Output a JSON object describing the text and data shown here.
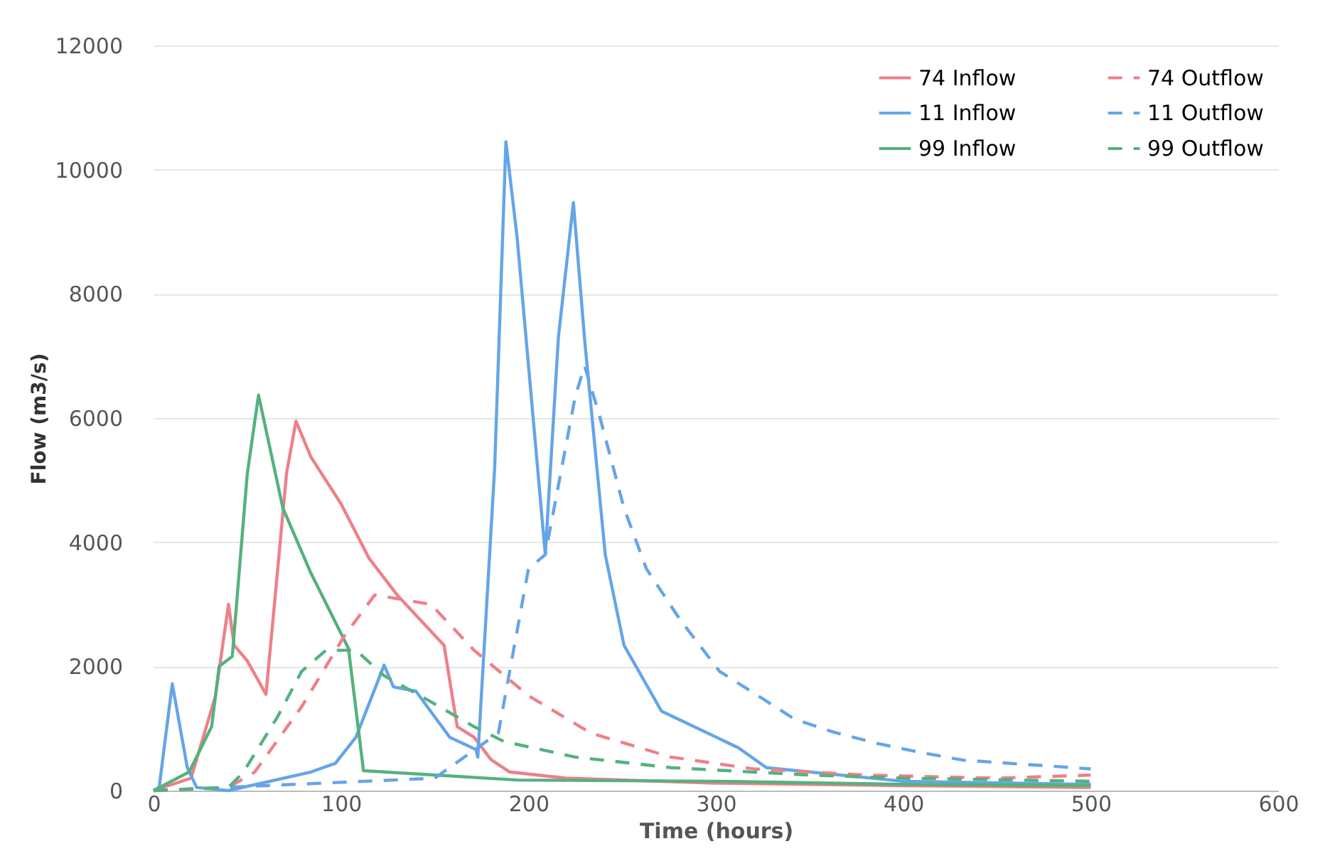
{
  "chart_data": {
    "type": "line",
    "xlabel": "Time (hours)",
    "ylabel": "Flow (m3/s)",
    "xlim": [
      0,
      600
    ],
    "xticks": [
      0,
      100,
      200,
      300,
      400,
      500,
      600
    ],
    "ylim": [
      0,
      12000
    ],
    "yticks": [
      0,
      2000,
      4000,
      6000,
      8000,
      10000,
      12000
    ],
    "grid": "y",
    "legend": "top right",
    "marker": "none",
    "series": [
      {
        "name": "74 Inflow",
        "color": "#ef7f88",
        "line_style": "solid",
        "x": [
          0,
          20,
          33,
          40,
          43,
          50,
          60,
          66,
          71,
          76,
          84,
          100,
          115,
          130,
          155,
          162,
          171,
          180,
          190,
          220,
          300,
          400,
          500
        ],
        "values": [
          0,
          200,
          1520,
          3000,
          2340,
          2090,
          1550,
          3490,
          5120,
          5950,
          5370,
          4620,
          3740,
          3150,
          2340,
          1030,
          860,
          500,
          300,
          200,
          120,
          80,
          50
        ]
      },
      {
        "name": "11 Inflow",
        "color": "#64a5e8",
        "line_style": "solid",
        "x": [
          0,
          3,
          10,
          18,
          23,
          40,
          84,
          97,
          108,
          123,
          128,
          140,
          158,
          172,
          173,
          182,
          188,
          194,
          209,
          216,
          224,
          230,
          241,
          251,
          271,
          312,
          327,
          400,
          500
        ],
        "values": [
          0,
          50,
          1720,
          370,
          50,
          0,
          300,
          440,
          860,
          2020,
          1670,
          1600,
          860,
          660,
          540,
          5200,
          10450,
          8900,
          3800,
          7300,
          9470,
          7260,
          3800,
          2340,
          1280,
          690,
          370,
          150,
          100
        ]
      },
      {
        "name": "99 Inflow",
        "color": "#55b17e",
        "line_style": "solid",
        "x": [
          0,
          19,
          31,
          35,
          42,
          50,
          56,
          69,
          84,
          104,
          112,
          194,
          300,
          400,
          500
        ],
        "values": [
          0,
          300,
          1030,
          2000,
          2160,
          5100,
          6370,
          4550,
          3500,
          2290,
          320,
          170,
          150,
          100,
          80
        ]
      },
      {
        "name": "74 Outflow",
        "color": "#ef7f88",
        "line_style": "dashed",
        "x": [
          0,
          40,
          54,
          79,
          102,
          118,
          148,
          171,
          200,
          233,
          276,
          320,
          380,
          450,
          500
        ],
        "values": [
          0,
          50,
          300,
          1350,
          2500,
          3150,
          3000,
          2260,
          1530,
          930,
          540,
          350,
          250,
          200,
          250
        ]
      },
      {
        "name": "11 Outflow",
        "color": "#64a5e8",
        "line_style": "dashed",
        "x": [
          0,
          150,
          184,
          200,
          209,
          225,
          230,
          238,
          251,
          263,
          281,
          302,
          325,
          342,
          363,
          386,
          410,
          432,
          500
        ],
        "values": [
          0,
          200,
          930,
          3570,
          3800,
          6350,
          6840,
          6030,
          4550,
          3570,
          2750,
          1920,
          1480,
          1150,
          940,
          760,
          610,
          490,
          350
        ]
      },
      {
        "name": "99 Outflow",
        "color": "#55b17e",
        "line_style": "dashed",
        "x": [
          0,
          40,
          48,
          66,
          79,
          92,
          108,
          123,
          148,
          171,
          187,
          225,
          276,
          350,
          400,
          500
        ],
        "values": [
          0,
          50,
          300,
          1180,
          1920,
          2260,
          2260,
          1850,
          1430,
          1030,
          790,
          540,
          370,
          250,
          200,
          150
        ]
      }
    ]
  }
}
